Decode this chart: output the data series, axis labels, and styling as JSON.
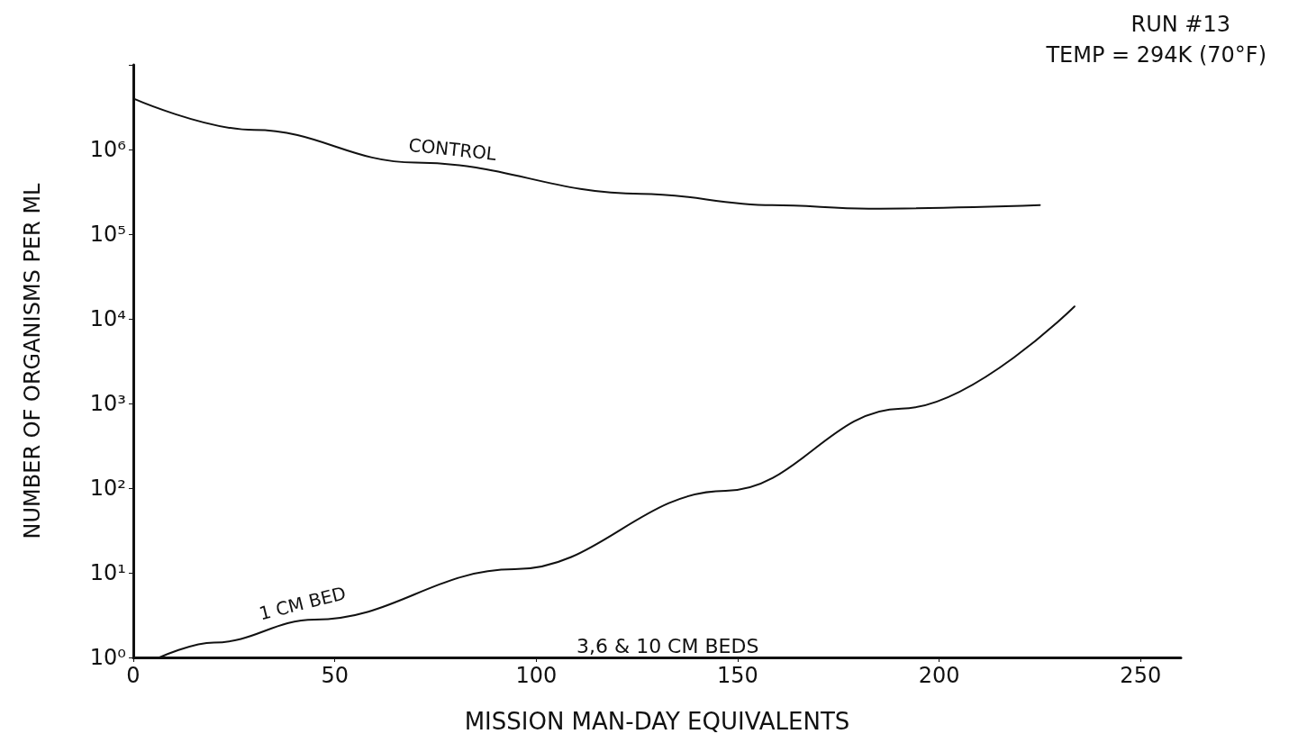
{
  "chart_data": {
    "type": "line",
    "title": "RUN #13",
    "subtitle": "TEMP = 294K (70°F)",
    "xlabel": "MISSION MAN-DAY EQUIVALENTS",
    "ylabel": "NUMBER OF ORGANISMS PER ML",
    "log": "y",
    "grid": false,
    "legend": false,
    "marker": "none",
    "line_style": "solid",
    "xlim": [
      0,
      260
    ],
    "xticks": [
      0,
      50,
      100,
      150,
      200,
      250
    ],
    "ylim": [
      1,
      10000000
    ],
    "yticks": [
      {
        "value": 1,
        "label": "10⁰"
      },
      {
        "value": 10,
        "label": "10¹"
      },
      {
        "value": 100,
        "label": "10²"
      },
      {
        "value": 1000,
        "label": "10³"
      },
      {
        "value": 10000,
        "label": "10⁴"
      },
      {
        "value": 100000,
        "label": "10⁵"
      },
      {
        "value": 1000000,
        "label": "10⁶"
      },
      {
        "value": 10000000,
        "label": null
      }
    ],
    "series": [
      {
        "name": "CONTROL",
        "color": "#111111",
        "x": [
          0,
          30,
          70,
          126,
          158.5,
          182.5,
          225
        ],
        "values": [
          4000000,
          1700000,
          700000,
          300000,
          220000,
          200000,
          220000
        ]
      },
      {
        "name": "1 CM BED",
        "color": "#111111",
        "x": [
          6.5,
          20,
          45,
          94.6,
          147,
          190.6,
          233.6
        ],
        "values": [
          1,
          1.5,
          2.8,
          11,
          93,
          870,
          14000
        ]
      }
    ],
    "annotations": [
      "3,6 & 10 CM BEDS"
    ]
  }
}
